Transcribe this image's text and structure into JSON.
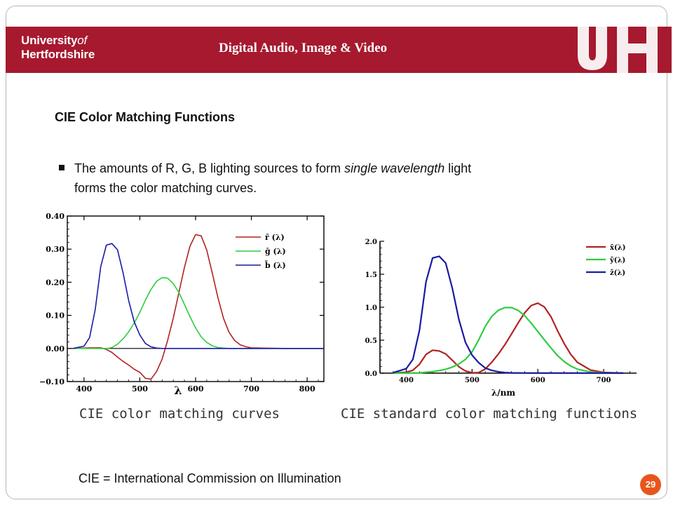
{
  "header": {
    "logo_line1": "University",
    "logo_of": "of",
    "logo_line2": "Hertfordshire",
    "title": "Digital Audio, Image & Video",
    "brand_mark": "UH"
  },
  "heading": "CIE Color Matching Functions",
  "bullet": {
    "part1": "The amounts of R, G, B lighting sources to form ",
    "emphasis": "single wavelength",
    "part2": " light",
    "line2": "forms the color matching curves."
  },
  "captions": {
    "left": "CIE color matching curves",
    "right": "CIE standard color matching functions"
  },
  "footnote": "CIE = International Commission on Illumination",
  "page_number": "29",
  "colors": {
    "banner": "#a6192e",
    "red": "#b22222",
    "green": "#2ecc40",
    "blue": "#1a1aa6",
    "page_badge": "#e8551c"
  },
  "chart_data": [
    {
      "type": "line",
      "xlabel": "λ",
      "ylabel": "",
      "xlim": [
        370,
        830
      ],
      "ylim": [
        -0.1,
        0.4
      ],
      "xticks": [
        "400",
        "500",
        "600",
        "700",
        "800"
      ],
      "yticks": [
        "−0.10",
        "0.00",
        "0.10",
        "0.20",
        "0.30",
        "0.40"
      ],
      "legend_position": "top-right",
      "series": [
        {
          "name": "r̄ (λ)",
          "color": "#b22222",
          "x": [
            380,
            410,
            430,
            440,
            450,
            460,
            470,
            480,
            490,
            500,
            510,
            520,
            530,
            540,
            550,
            560,
            570,
            580,
            590,
            600,
            610,
            620,
            630,
            640,
            650,
            660,
            670,
            680,
            690,
            700,
            720,
            760,
            830
          ],
          "y": [
            0.0,
            0.002,
            0.002,
            -0.003,
            -0.012,
            -0.026,
            -0.039,
            -0.05,
            -0.063,
            -0.072,
            -0.09,
            -0.093,
            -0.07,
            -0.032,
            0.025,
            0.092,
            0.168,
            0.245,
            0.309,
            0.344,
            0.34,
            0.297,
            0.227,
            0.154,
            0.091,
            0.049,
            0.024,
            0.011,
            0.005,
            0.002,
            0.001,
            0.0,
            0.0
          ]
        },
        {
          "name": "ḡ (λ)",
          "color": "#2ecc40",
          "x": [
            380,
            410,
            430,
            440,
            450,
            460,
            470,
            480,
            490,
            500,
            510,
            520,
            530,
            540,
            550,
            560,
            570,
            580,
            590,
            600,
            610,
            620,
            630,
            640,
            650,
            660,
            670,
            690,
            720,
            830
          ],
          "y": [
            0.0,
            0.0,
            0.0,
            -0.001,
            0.003,
            0.013,
            0.029,
            0.05,
            0.077,
            0.109,
            0.146,
            0.178,
            0.203,
            0.214,
            0.212,
            0.196,
            0.169,
            0.133,
            0.096,
            0.062,
            0.035,
            0.018,
            0.008,
            0.003,
            0.001,
            0.0,
            0.0,
            0.0,
            0.0,
            0.0
          ]
        },
        {
          "name": "b̄ (λ)",
          "color": "#1a1aa6",
          "x": [
            380,
            400,
            410,
            420,
            430,
            440,
            450,
            460,
            470,
            480,
            490,
            500,
            510,
            520,
            530,
            540,
            550,
            600,
            700,
            830
          ],
          "y": [
            0.0,
            0.007,
            0.033,
            0.117,
            0.247,
            0.312,
            0.317,
            0.298,
            0.228,
            0.145,
            0.08,
            0.041,
            0.015,
            0.005,
            0.001,
            0.0,
            0.0,
            0.0,
            0.0,
            0.0
          ]
        }
      ]
    },
    {
      "type": "line",
      "xlabel": "λ/nm",
      "ylabel": "",
      "xlim": [
        360,
        750
      ],
      "ylim": [
        0.0,
        2.0
      ],
      "xticks": [
        "400",
        "500",
        "600",
        "700"
      ],
      "yticks": [
        "0.0",
        "0.5",
        "1.0",
        "1.5",
        "2.0"
      ],
      "legend_position": "top-right",
      "series": [
        {
          "name": "x̄(λ)",
          "color": "#b22222",
          "x": [
            380,
            400,
            410,
            420,
            430,
            440,
            450,
            460,
            470,
            480,
            490,
            500,
            510,
            520,
            530,
            540,
            550,
            560,
            570,
            580,
            590,
            600,
            610,
            620,
            630,
            640,
            650,
            660,
            680,
            700,
            730
          ],
          "y": [
            0.001,
            0.014,
            0.044,
            0.134,
            0.284,
            0.348,
            0.336,
            0.291,
            0.195,
            0.096,
            0.032,
            0.005,
            0.009,
            0.063,
            0.166,
            0.29,
            0.433,
            0.595,
            0.762,
            0.916,
            1.026,
            1.062,
            1.003,
            0.854,
            0.642,
            0.448,
            0.284,
            0.165,
            0.047,
            0.011,
            0.001
          ]
        },
        {
          "name": "ȳ(λ)",
          "color": "#2ecc40",
          "x": [
            380,
            400,
            420,
            440,
            450,
            460,
            470,
            480,
            490,
            500,
            510,
            520,
            530,
            540,
            550,
            560,
            570,
            580,
            590,
            600,
            610,
            620,
            630,
            640,
            650,
            660,
            680,
            700,
            730
          ],
          "y": [
            0.0,
            0.0,
            0.004,
            0.023,
            0.038,
            0.06,
            0.091,
            0.139,
            0.208,
            0.323,
            0.503,
            0.71,
            0.862,
            0.954,
            0.995,
            0.995,
            0.952,
            0.87,
            0.757,
            0.631,
            0.503,
            0.381,
            0.265,
            0.175,
            0.107,
            0.061,
            0.017,
            0.004,
            0.0
          ]
        },
        {
          "name": "z̄(λ)",
          "color": "#1a1aa6",
          "x": [
            380,
            400,
            410,
            420,
            430,
            440,
            450,
            460,
            470,
            480,
            490,
            500,
            510,
            520,
            530,
            540,
            550,
            560,
            580,
            600,
            730
          ],
          "y": [
            0.007,
            0.068,
            0.207,
            0.646,
            1.386,
            1.747,
            1.772,
            1.669,
            1.288,
            0.813,
            0.465,
            0.272,
            0.158,
            0.078,
            0.042,
            0.02,
            0.009,
            0.004,
            0.002,
            0.001,
            0.0
          ]
        }
      ]
    }
  ]
}
